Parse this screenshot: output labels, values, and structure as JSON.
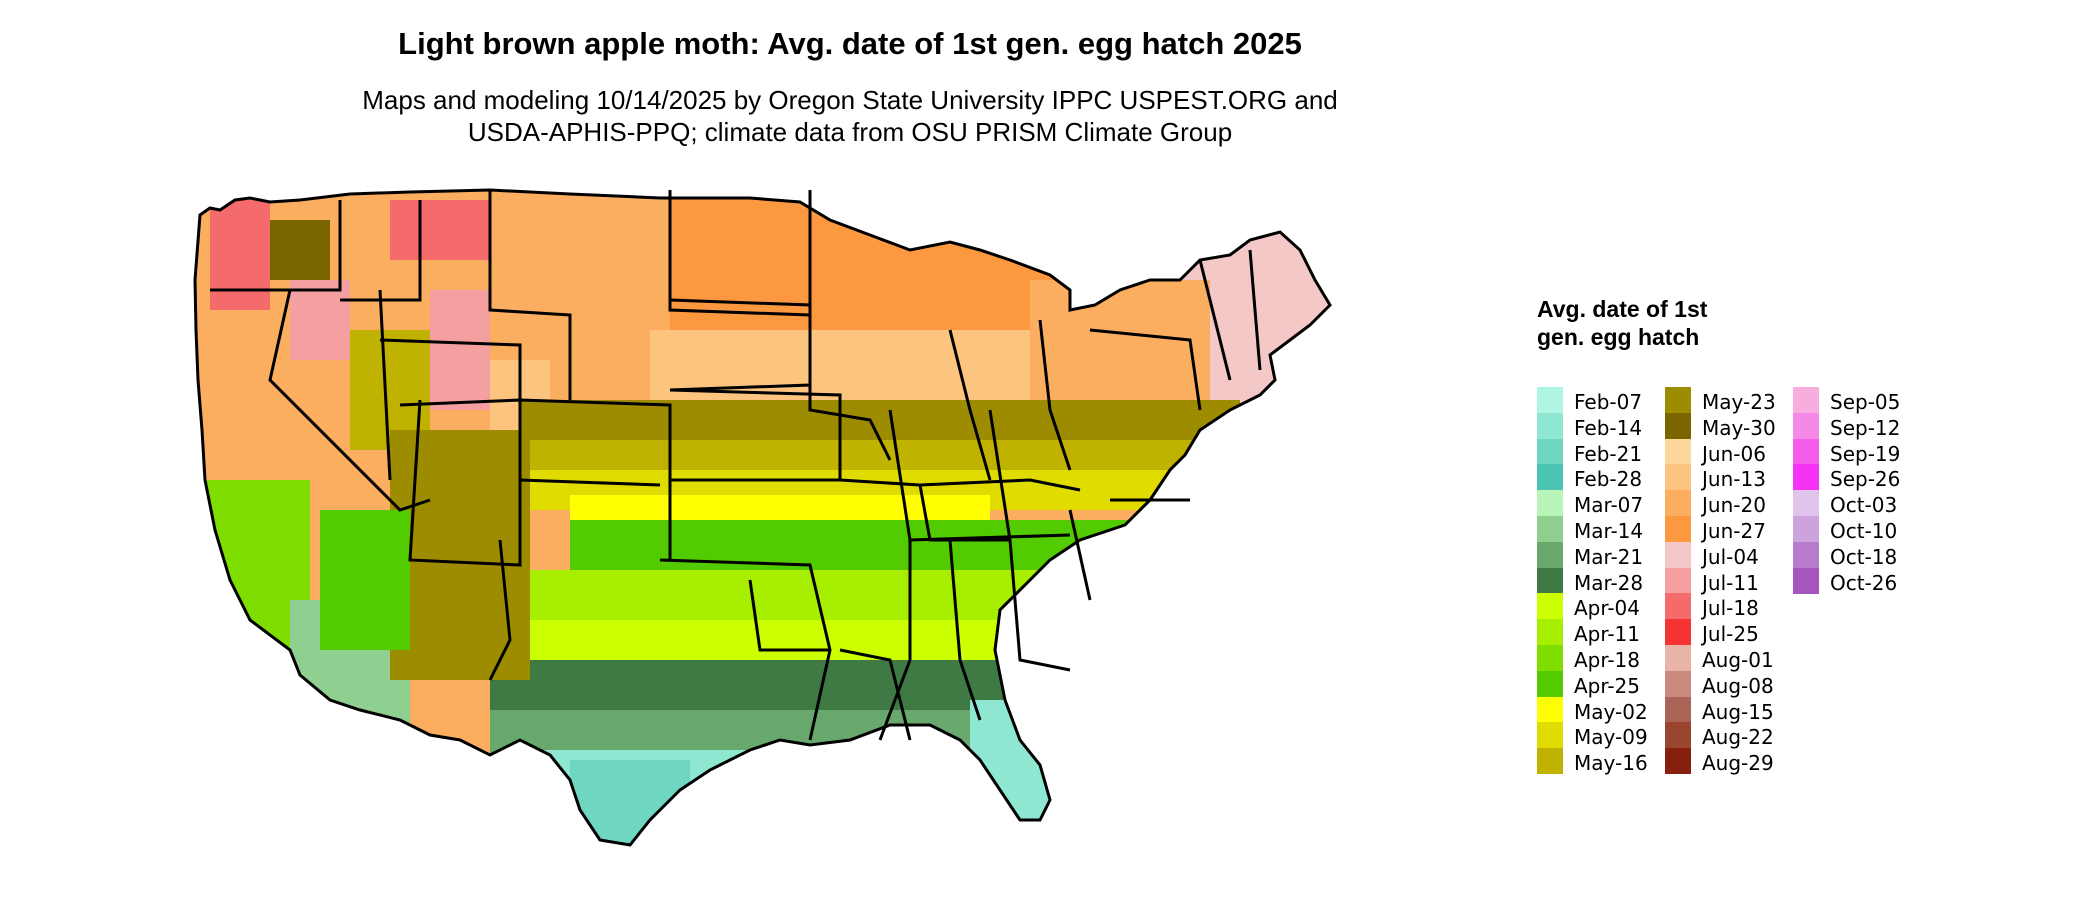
{
  "title": "Light brown apple moth: Avg. date of 1st gen. egg hatch 2025",
  "subtitle_line1": "Maps and modeling 10/14/2025 by Oregon State University IPPC USPEST.ORG and",
  "subtitle_line2": "USDA-APHIS-PPQ; climate data from OSU PRISM Climate Group",
  "legend": {
    "title": "Avg. date of 1st gen. egg hatch",
    "items": [
      {
        "label": "Feb-07",
        "color": "#aef5e4"
      },
      {
        "label": "Feb-14",
        "color": "#8fe6d1"
      },
      {
        "label": "Feb-21",
        "color": "#6fd6c2"
      },
      {
        "label": "Feb-28",
        "color": "#4cc4b4"
      },
      {
        "label": "Mar-07",
        "color": "#b9f5b9"
      },
      {
        "label": "Mar-14",
        "color": "#8fcf8f"
      },
      {
        "label": "Mar-21",
        "color": "#69a86c"
      },
      {
        "label": "Mar-28",
        "color": "#3f7a45"
      },
      {
        "label": "Apr-04",
        "color": "#ccff00"
      },
      {
        "label": "Apr-11",
        "color": "#a8ee00"
      },
      {
        "label": "Apr-18",
        "color": "#7fdd00"
      },
      {
        "label": "Apr-25",
        "color": "#52cc00"
      },
      {
        "label": "May-02",
        "color": "#ffff00"
      },
      {
        "label": "May-09",
        "color": "#e0dc00"
      },
      {
        "label": "May-16",
        "color": "#c0b200"
      },
      {
        "label": "May-23",
        "color": "#9e8c00"
      },
      {
        "label": "May-30",
        "color": "#7a6600"
      },
      {
        "label": "Jun-06",
        "color": "#fcd99a"
      },
      {
        "label": "Jun-13",
        "color": "#fcc47e"
      },
      {
        "label": "Jun-20",
        "color": "#fcae60"
      },
      {
        "label": "Jun-27",
        "color": "#fc983f"
      },
      {
        "label": "Jul-04",
        "color": "#f5c8c8"
      },
      {
        "label": "Jul-11",
        "color": "#f5a0a0"
      },
      {
        "label": "Jul-18",
        "color": "#f56a6a"
      },
      {
        "label": "Jul-25",
        "color": "#f53333"
      },
      {
        "label": "Aug-01",
        "color": "#e8b4a8"
      },
      {
        "label": "Aug-08",
        "color": "#c98a7d"
      },
      {
        "label": "Aug-15",
        "color": "#aa6457"
      },
      {
        "label": "Aug-22",
        "color": "#9a4530"
      },
      {
        "label": "Aug-29",
        "color": "#86200c"
      },
      {
        "label": "Sep-05",
        "color": "#f7aede"
      },
      {
        "label": "Sep-12",
        "color": "#f58ae6"
      },
      {
        "label": "Sep-19",
        "color": "#f55cec"
      },
      {
        "label": "Sep-26",
        "color": "#f533f5"
      },
      {
        "label": "Oct-03",
        "color": "#e0c4ec"
      },
      {
        "label": "Oct-10",
        "color": "#cca3dc"
      },
      {
        "label": "Oct-18",
        "color": "#b87ccc"
      },
      {
        "label": "Oct-26",
        "color": "#a655be"
      }
    ]
  }
}
